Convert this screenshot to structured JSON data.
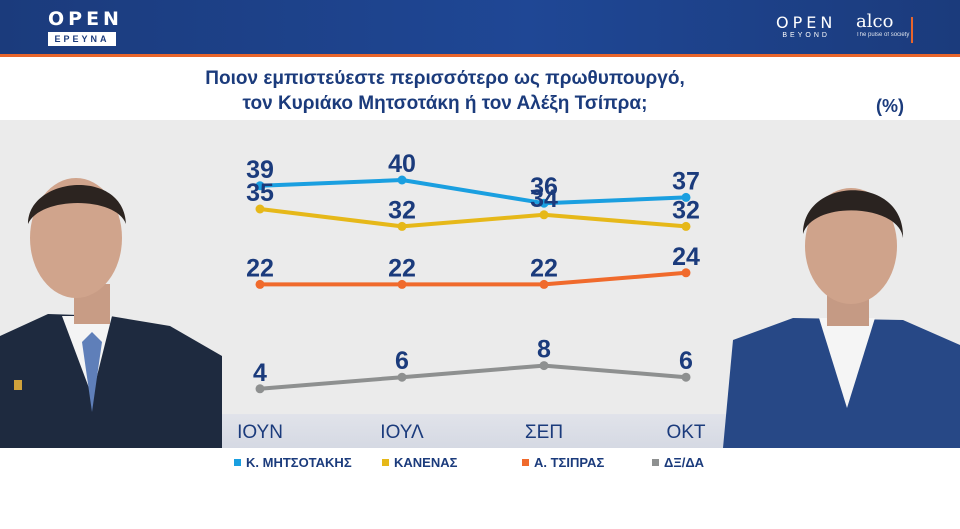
{
  "header": {
    "left_logo": {
      "wordmark": "OPEN",
      "subtitle": "ΕΡΕΥΝΑ"
    },
    "right_logo": {
      "wordmark": "OPEN",
      "subtitle": "BEYOND"
    },
    "partner_logo": {
      "wordmark": "alco",
      "tagline": "The pulse of society"
    }
  },
  "title_line1": "Ποιον εμπιστεύεστε περισσότερο ως πρωθυπουργό,",
  "title_line2": "τον Κυριάκο Μητσοτάκη ή τον Αλέξη Τσίπρα;",
  "unit": "(%)",
  "colors": {
    "header_bg": "#1f4795",
    "accent": "#e8652b",
    "text": "#1b3b7c",
    "panel_bg": "#ebebeb"
  },
  "chart_data": {
    "type": "line",
    "categories": [
      "ΙΟΥΝ",
      "ΙΟΥΛ",
      "ΣΕΠ",
      "ΟΚΤ"
    ],
    "series": [
      {
        "name": "Κ. ΜΗΤΣΟΤΑΚΗΣ",
        "color": "#1a9fe0",
        "values": [
          39,
          40,
          36,
          37
        ]
      },
      {
        "name": "ΚΑΝΕΝΑΣ",
        "color": "#e6b819",
        "values": [
          35,
          32,
          34,
          32
        ]
      },
      {
        "name": "Α. ΤΣΙΠΡΑΣ",
        "color": "#f06a2c",
        "values": [
          22,
          22,
          22,
          24
        ]
      },
      {
        "name": "ΔΞ/ΔΑ",
        "color": "#8e9090",
        "values": [
          4,
          6,
          8,
          6
        ]
      }
    ],
    "ylim": [
      0,
      45
    ],
    "grid": false,
    "legend_position": "bottom"
  }
}
